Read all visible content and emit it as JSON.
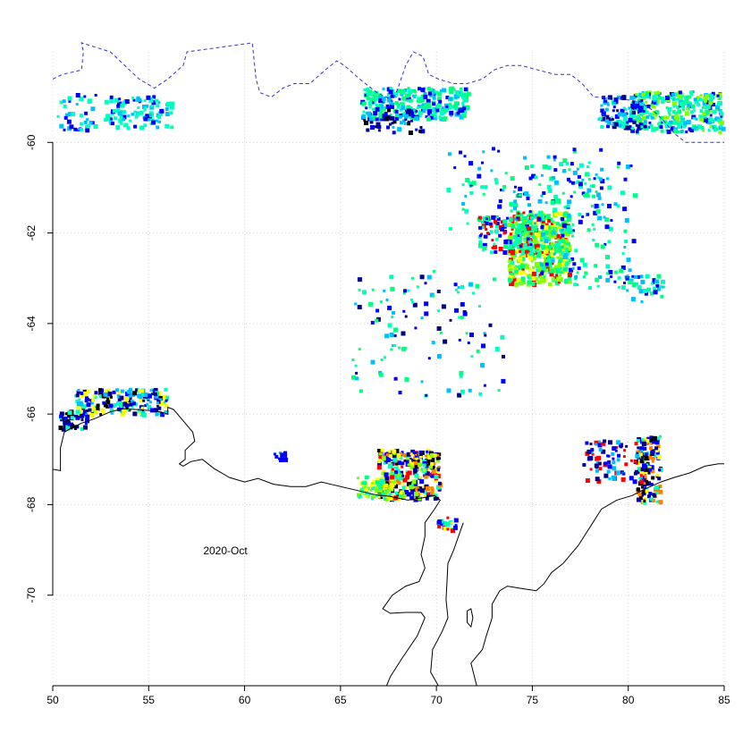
{
  "map": {
    "annotation": "2020-Oct",
    "x_axis": {
      "range": [
        50,
        85
      ],
      "ticks": [
        50,
        55,
        60,
        65,
        70,
        75,
        80,
        85
      ],
      "tick_labels": [
        "50",
        "55",
        "60",
        "65",
        "70",
        "75",
        "80",
        "85"
      ]
    },
    "y_axis": {
      "range": [
        -72,
        -58
      ],
      "ticks": [
        -60,
        -62,
        -64,
        -66,
        -68,
        -70
      ],
      "tick_labels": [
        "-60",
        "-62",
        "-64",
        "-66",
        "-68",
        "-70"
      ],
      "labels_rotated": true
    },
    "grid": "dotted",
    "colors": {
      "coastline": "#000000",
      "ice_edge": "#3333cc",
      "grid": "#d3d3d3",
      "palette": [
        "#0000ff",
        "#00bfff",
        "#00ffbf",
        "#00ff7f",
        "#7fff00",
        "#ffff00",
        "#ff7f00",
        "#ff0000",
        "#000000",
        "#00008b"
      ]
    },
    "coastline": [
      [
        50,
        -67.22
      ],
      [
        50.4,
        -67.25
      ],
      [
        50.4,
        -66.75
      ],
      [
        50.6,
        -66.4
      ],
      [
        51.0,
        -66.3
      ],
      [
        51.5,
        -66.2
      ],
      [
        52.2,
        -66.1
      ],
      [
        53.0,
        -65.95
      ],
      [
        53.7,
        -65.88
      ],
      [
        54.4,
        -65.9
      ],
      [
        55.0,
        -65.92
      ],
      [
        55.6,
        -65.95
      ],
      [
        56.0,
        -66.0
      ],
      [
        56.0,
        -65.85
      ],
      [
        56.3,
        -65.9
      ],
      [
        56.8,
        -66.15
      ],
      [
        57.3,
        -66.4
      ],
      [
        57.4,
        -66.6
      ],
      [
        56.9,
        -66.8
      ],
      [
        56.9,
        -67.0
      ],
      [
        56.6,
        -67.1
      ],
      [
        56.8,
        -67.15
      ],
      [
        57.2,
        -67.05
      ],
      [
        57.8,
        -67.0
      ],
      [
        58.4,
        -67.2
      ],
      [
        59.2,
        -67.4
      ],
      [
        60.0,
        -67.5
      ],
      [
        60.7,
        -67.42
      ],
      [
        61.5,
        -67.55
      ],
      [
        62.4,
        -67.6
      ],
      [
        63.2,
        -67.6
      ],
      [
        64.0,
        -67.5
      ],
      [
        64.8,
        -67.58
      ],
      [
        65.8,
        -67.68
      ],
      [
        66.8,
        -67.78
      ],
      [
        67.6,
        -67.82
      ],
      [
        68.5,
        -67.9
      ],
      [
        69.3,
        -67.85
      ],
      [
        69.9,
        -67.8
      ],
      [
        70.2,
        -67.9
      ],
      [
        69.9,
        -68.1
      ],
      [
        69.4,
        -68.4
      ],
      [
        69.4,
        -68.7
      ],
      [
        69.2,
        -69.1
      ],
      [
        69.4,
        -69.4
      ],
      [
        69.1,
        -69.7
      ],
      [
        68.4,
        -69.8
      ],
      [
        67.7,
        -70.0
      ],
      [
        67.2,
        -70.3
      ],
      [
        67.6,
        -70.4
      ],
      [
        68.4,
        -70.38
      ],
      [
        69.2,
        -70.38
      ],
      [
        69.4,
        -70.5
      ],
      [
        69.0,
        -70.9
      ],
      [
        68.2,
        -71.4
      ],
      [
        67.6,
        -71.8
      ],
      [
        67.4,
        -72.0
      ]
    ],
    "coastline_east": [
      [
        70.1,
        -72.0
      ],
      [
        69.7,
        -71.7
      ],
      [
        69.8,
        -71.2
      ],
      [
        70.3,
        -70.8
      ],
      [
        70.6,
        -70.5
      ],
      [
        70.5,
        -70.1
      ],
      [
        70.6,
        -69.3
      ],
      [
        70.9,
        -69.0
      ],
      [
        71.4,
        -68.4
      ]
    ],
    "coastline_amery_east": [
      [
        72.1,
        -72.0
      ],
      [
        71.8,
        -71.5
      ],
      [
        72.4,
        -71.2
      ],
      [
        72.6,
        -70.9
      ],
      [
        72.9,
        -70.5
      ],
      [
        72.9,
        -70.2
      ],
      [
        73.3,
        -69.9
      ],
      [
        73.7,
        -69.8
      ],
      [
        74.4,
        -69.85
      ],
      [
        75.2,
        -69.9
      ],
      [
        75.6,
        -69.75
      ],
      [
        76.0,
        -69.5
      ],
      [
        76.6,
        -69.3
      ],
      [
        77.4,
        -68.9
      ],
      [
        78.0,
        -68.5
      ],
      [
        78.6,
        -68.1
      ],
      [
        79.4,
        -67.9
      ],
      [
        80.2,
        -67.8
      ],
      [
        80.9,
        -67.65
      ],
      [
        81.7,
        -67.5
      ],
      [
        82.4,
        -67.4
      ],
      [
        83.2,
        -67.3
      ],
      [
        84.0,
        -67.15
      ],
      [
        84.7,
        -67.1
      ],
      [
        85,
        -67.1
      ]
    ],
    "islands": [
      [
        [
          71.6,
          -70.35
        ],
        [
          71.8,
          -70.3
        ],
        [
          71.9,
          -70.5
        ],
        [
          71.8,
          -70.7
        ],
        [
          71.6,
          -70.6
        ],
        [
          71.6,
          -70.35
        ]
      ]
    ],
    "ice_edge": [
      [
        50,
        -58.6
      ],
      [
        50.5,
        -58.5
      ],
      [
        51.5,
        -58.4
      ],
      [
        51.6,
        -58.0
      ],
      [
        51.5,
        -57.8
      ],
      [
        53.0,
        -58.0
      ],
      [
        54.5,
        -58.6
      ],
      [
        55.3,
        -58.8
      ],
      [
        56.0,
        -58.6
      ],
      [
        56.8,
        -58.3
      ],
      [
        57.0,
        -58.0
      ],
      [
        60.4,
        -57.8
      ],
      [
        60.6,
        -58.6
      ],
      [
        60.8,
        -58.9
      ],
      [
        61.4,
        -59.0
      ],
      [
        62.0,
        -58.8
      ],
      [
        62.6,
        -58.7
      ],
      [
        63.4,
        -58.7
      ],
      [
        64.2,
        -58.4
      ],
      [
        64.8,
        -58.2
      ],
      [
        65.2,
        -58.3
      ],
      [
        66.0,
        -58.6
      ],
      [
        66.9,
        -58.9
      ],
      [
        67.4,
        -59.0
      ],
      [
        67.7,
        -59.1
      ],
      [
        68.0,
        -58.8
      ],
      [
        68.4,
        -58.3
      ],
      [
        68.8,
        -58.0
      ],
      [
        69.3,
        -58.1
      ],
      [
        69.6,
        -58.5
      ],
      [
        70.1,
        -58.6
      ],
      [
        70.9,
        -58.7
      ],
      [
        71.6,
        -58.7
      ],
      [
        72.4,
        -58.6
      ],
      [
        73.0,
        -58.4
      ],
      [
        73.7,
        -58.3
      ],
      [
        74.4,
        -58.3
      ],
      [
        75.3,
        -58.4
      ],
      [
        76.2,
        -58.5
      ],
      [
        77.0,
        -58.5
      ],
      [
        77.6,
        -58.7
      ],
      [
        78.2,
        -59.0
      ],
      [
        78.8,
        -59.0
      ],
      [
        79.8,
        -59.05
      ],
      [
        80.6,
        -59.1
      ],
      [
        81.3,
        -59.3
      ],
      [
        81.8,
        -59.5
      ],
      [
        82.4,
        -59.8
      ],
      [
        83.0,
        -60.0
      ],
      [
        83.8,
        -60.0
      ],
      [
        84.4,
        -60.0
      ],
      [
        85,
        -60.0
      ]
    ],
    "clusters": [
      {
        "lon": 54.4,
        "lat": -59.3,
        "dlon": 1.8,
        "dlat": 0.35,
        "n": 110,
        "palette": [
          1,
          2,
          2,
          0
        ]
      },
      {
        "lon": 51.2,
        "lat": -59.3,
        "dlon": 1.0,
        "dlat": 0.4,
        "n": 40,
        "palette": [
          1,
          2,
          0
        ]
      },
      {
        "lon": 68.8,
        "lat": -59.1,
        "dlon": 2.8,
        "dlat": 0.35,
        "n": 320,
        "palette": [
          2,
          3,
          2,
          1,
          3,
          0
        ]
      },
      {
        "lon": 67.6,
        "lat": -59.5,
        "dlon": 1.6,
        "dlat": 0.25,
        "n": 60,
        "palette": [
          0,
          1,
          9,
          8
        ]
      },
      {
        "lon": 82.5,
        "lat": -59.3,
        "dlon": 2.4,
        "dlat": 0.45,
        "n": 300,
        "palette": [
          1,
          2,
          3,
          4,
          0,
          2
        ]
      },
      {
        "lon": 79.6,
        "lat": -59.3,
        "dlon": 1.2,
        "dlat": 0.35,
        "n": 100,
        "palette": [
          1,
          0,
          2,
          9
        ]
      },
      {
        "lon": 75.3,
        "lat": -62.3,
        "dlon": 1.6,
        "dlat": 0.8,
        "n": 520,
        "palette": [
          3,
          4,
          4,
          3,
          5,
          2,
          7
        ]
      },
      {
        "lon": 73.5,
        "lat": -62.0,
        "dlon": 1.4,
        "dlat": 0.4,
        "n": 120,
        "palette": [
          2,
          3,
          0,
          7
        ]
      },
      {
        "lon": 77.8,
        "lat": -61.8,
        "dlon": 2.5,
        "dlat": 1.4,
        "n": 160,
        "palette": [
          2,
          3,
          1,
          0
        ]
      },
      {
        "lon": 74.5,
        "lat": -61.0,
        "dlon": 4.0,
        "dlat": 0.9,
        "n": 130,
        "palette": [
          2,
          3,
          1,
          0
        ]
      },
      {
        "lon": 80.8,
        "lat": -63.2,
        "dlon": 1.0,
        "dlat": 0.3,
        "n": 40,
        "palette": [
          2,
          3,
          1,
          0
        ]
      },
      {
        "lon": 53.5,
        "lat": -65.7,
        "dlon": 2.4,
        "dlat": 0.28,
        "n": 200,
        "palette": [
          0,
          1,
          2,
          9,
          8,
          5
        ]
      },
      {
        "lon": 51.0,
        "lat": -66.1,
        "dlon": 0.7,
        "dlat": 0.2,
        "n": 50,
        "palette": [
          9,
          0,
          8,
          2
        ]
      },
      {
        "lon": 68.5,
        "lat": -67.3,
        "dlon": 1.6,
        "dlat": 0.55,
        "n": 320,
        "palette": [
          0,
          7,
          6,
          5,
          8,
          9,
          2,
          4
        ]
      },
      {
        "lon": 66.8,
        "lat": -67.6,
        "dlon": 1.0,
        "dlat": 0.25,
        "n": 70,
        "palette": [
          4,
          5,
          3,
          2
        ]
      },
      {
        "lon": 81.0,
        "lat": -67.2,
        "dlon": 0.6,
        "dlat": 0.75,
        "n": 160,
        "palette": [
          0,
          9,
          5,
          6,
          2,
          8
        ]
      },
      {
        "lon": 79.2,
        "lat": -67.0,
        "dlon": 1.6,
        "dlat": 0.45,
        "n": 90,
        "palette": [
          0,
          9,
          7,
          1
        ]
      },
      {
        "lon": 70.5,
        "lat": -68.4,
        "dlon": 0.5,
        "dlat": 0.15,
        "n": 25,
        "palette": [
          7,
          5,
          0,
          2
        ]
      },
      {
        "lon": 61.8,
        "lat": -66.9,
        "dlon": 0.3,
        "dlat": 0.1,
        "n": 14,
        "palette": [
          0,
          1
        ]
      },
      {
        "lon": 69.5,
        "lat": -64.2,
        "dlon": 4.0,
        "dlat": 1.4,
        "n": 120,
        "palette": [
          0,
          1,
          2,
          3,
          9
        ]
      }
    ]
  }
}
